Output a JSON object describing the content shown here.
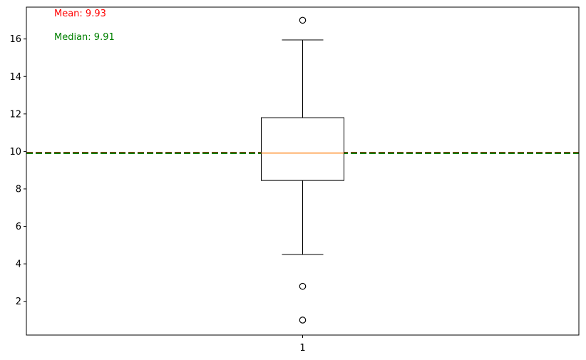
{
  "chart_data": {
    "type": "box",
    "categories": [
      "1"
    ],
    "box": {
      "q1": 8.45,
      "median": 9.91,
      "q3": 11.8,
      "whisker_low": 4.5,
      "whisker_high": 15.95,
      "outliers": [
        17.0,
        2.8,
        1.0
      ]
    },
    "mean": 9.93,
    "median": 9.91,
    "ylim": [
      0.2,
      17.7
    ],
    "yticks": [
      2,
      4,
      6,
      8,
      10,
      12,
      14,
      16
    ],
    "title": "",
    "xlabel": "",
    "ylabel": "",
    "grid": false,
    "annotations": {
      "mean_label": "Mean: 9.93",
      "median_label": "Median: 9.91"
    },
    "colors": {
      "mean_line": "#ff0000",
      "median_line": "#008000",
      "box_median": "#ff7f0e",
      "box": "#000000",
      "mean_text": "#ff0000",
      "median_text": "#008000"
    }
  }
}
